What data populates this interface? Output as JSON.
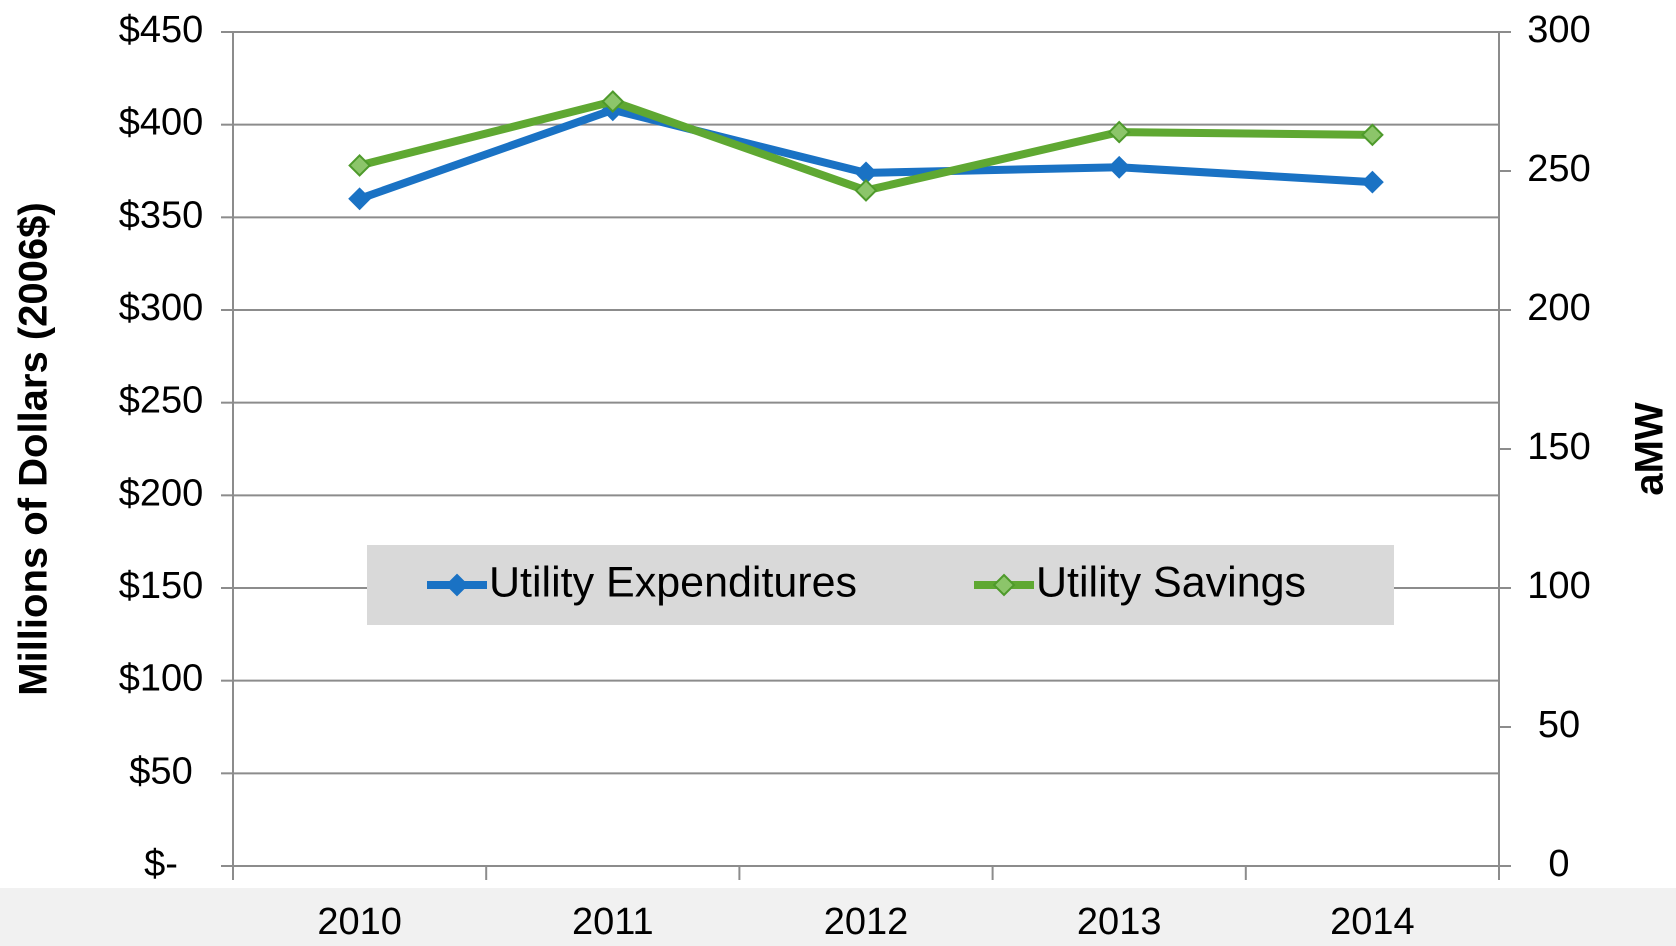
{
  "chart_data": {
    "type": "line",
    "categories": [
      "2010",
      "2011",
      "2012",
      "2013",
      "2014"
    ],
    "series": [
      {
        "name": "Utility Expenditures",
        "color": "#1a72c4",
        "values": [
          360,
          408,
          374,
          377,
          369
        ]
      },
      {
        "name": "Utility Savings",
        "color": "#5fa832",
        "axis": "y2",
        "values": [
          252,
          275,
          243,
          264,
          263
        ]
      }
    ],
    "ylabel": "Millions of Dollars (2006$)",
    "y2label": "aMW",
    "ylim": [
      0,
      450
    ],
    "yticks": [
      {
        "value": 0,
        "label": "$-"
      },
      {
        "value": 50,
        "label": "$50"
      },
      {
        "value": 100,
        "label": "$100"
      },
      {
        "value": 150,
        "label": "$150"
      },
      {
        "value": 200,
        "label": "$200"
      },
      {
        "value": 250,
        "label": "$250"
      },
      {
        "value": 300,
        "label": "$300"
      },
      {
        "value": 350,
        "label": "$350"
      },
      {
        "value": 400,
        "label": "$400"
      },
      {
        "value": 450,
        "label": "$450"
      }
    ],
    "y2lim": [
      0,
      300
    ],
    "y2ticks": [
      0,
      50,
      100,
      150,
      200,
      250,
      300
    ],
    "grid": true,
    "legend": "center"
  }
}
